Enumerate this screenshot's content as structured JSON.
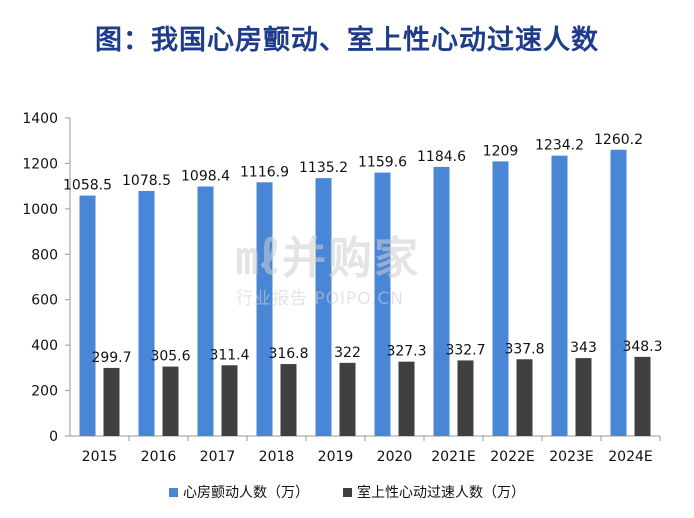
{
  "title": "图：我国心房颤动、室上性心动过速人数",
  "watermark": {
    "logo": "㎖并购家",
    "sub": "行业报告 POIPO.CN"
  },
  "colors": {
    "series1": "#4a86d6",
    "series2": "#404040",
    "axis": "#9a9a9a"
  },
  "chart_data": {
    "type": "bar",
    "categories": [
      "2015",
      "2016",
      "2017",
      "2018",
      "2019",
      "2020",
      "2021E",
      "2022E",
      "2023E",
      "2024E"
    ],
    "series": [
      {
        "name": "心房颤动人数（万）",
        "values": [
          1058.5,
          1078.5,
          1098.4,
          1116.9,
          1135.2,
          1159.6,
          1184.6,
          1209,
          1234.2,
          1260.2
        ]
      },
      {
        "name": "室上性心动过速人数（万）",
        "values": [
          299.7,
          305.6,
          311.4,
          316.8,
          322,
          327.3,
          332.7,
          337.8,
          343,
          348.3
        ]
      }
    ],
    "ylim": [
      0,
      1400
    ],
    "yticks": [
      0,
      200,
      400,
      600,
      800,
      1000,
      1200,
      1400
    ],
    "grid": false,
    "legend": "bottom"
  }
}
